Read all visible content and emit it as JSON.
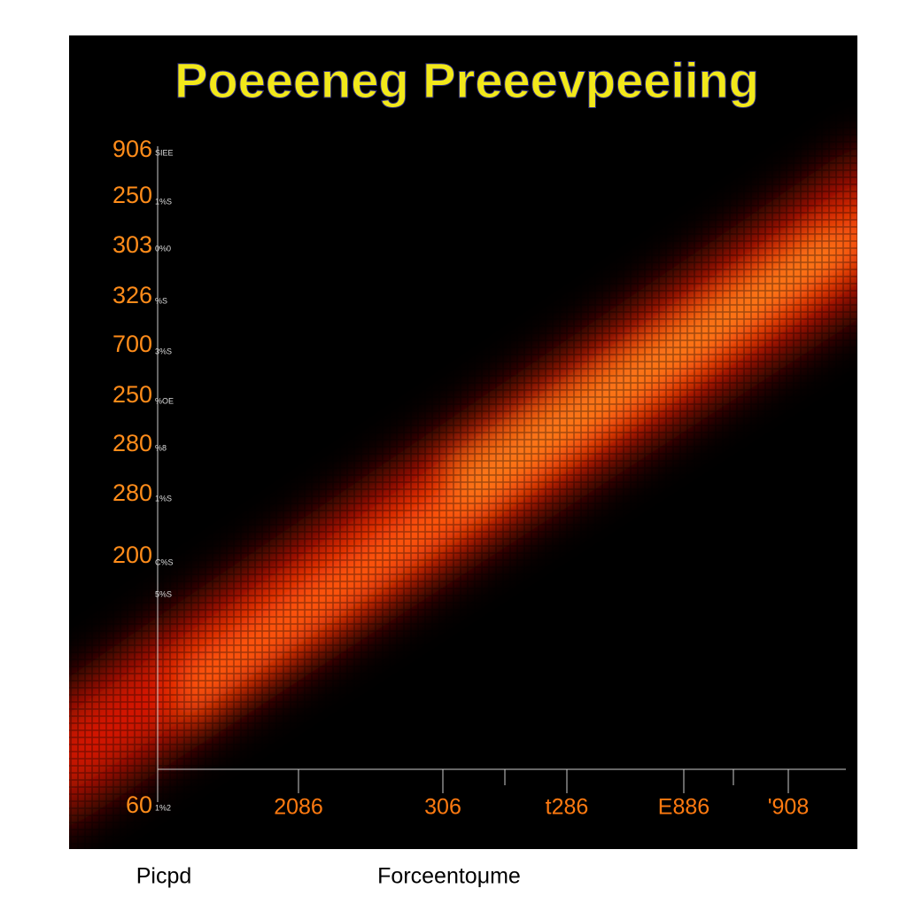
{
  "title": "Poeeeneg Preeevpeeiing",
  "y_labels": [
    "906",
    "250",
    "303",
    "326",
    "700",
    "250",
    "280",
    "280",
    "200",
    "60"
  ],
  "y_small_labels": [
    "SIEE",
    "1%S",
    "0%0",
    "%S",
    "3%S",
    "%OE",
    "%8",
    "1%S",
    "C%S",
    "5%S",
    "1%2"
  ],
  "x_labels": [
    "2086",
    "306",
    "t286",
    "E886",
    "'908"
  ],
  "captions": [
    "Picpd",
    "Forceentoμme"
  ]
}
